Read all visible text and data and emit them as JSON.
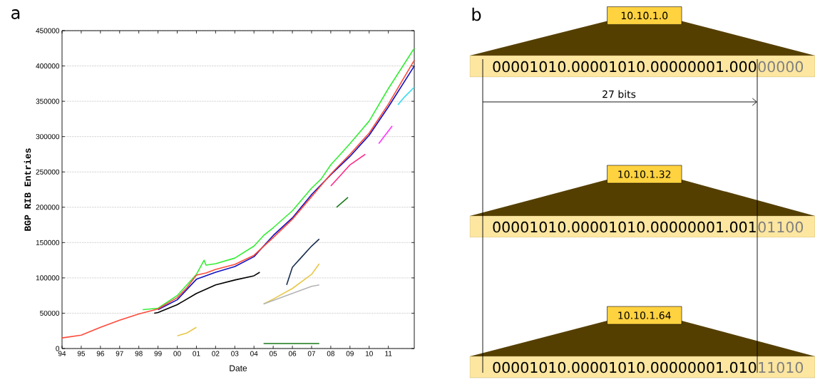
{
  "chart_data": [
    {
      "type": "line",
      "title": "a",
      "xlabel": "Date",
      "ylabel": "BGP RIB Entries",
      "xlim": [
        1994,
        2012.35
      ],
      "ylim": [
        0,
        450000
      ],
      "xticks": [
        {
          "value": 1994,
          "label": "94"
        },
        {
          "value": 1995,
          "label": "95"
        },
        {
          "value": 1996,
          "label": "96"
        },
        {
          "value": 1997,
          "label": "97"
        },
        {
          "value": 1998,
          "label": "98"
        },
        {
          "value": 1999,
          "label": "99"
        },
        {
          "value": 2000,
          "label": "00"
        },
        {
          "value": 2001,
          "label": "01"
        },
        {
          "value": 2002,
          "label": "02"
        },
        {
          "value": 2003,
          "label": "03"
        },
        {
          "value": 2004,
          "label": "04"
        },
        {
          "value": 2005,
          "label": "05"
        },
        {
          "value": 2006,
          "label": "06"
        },
        {
          "value": 2007,
          "label": "07"
        },
        {
          "value": 2008,
          "label": "08"
        },
        {
          "value": 2009,
          "label": "09"
        },
        {
          "value": 2010,
          "label": "10"
        },
        {
          "value": 2011,
          "label": "11"
        }
      ],
      "yticks": [
        0,
        50000,
        100000,
        150000,
        200000,
        250000,
        300000,
        350000,
        400000,
        450000
      ],
      "grid": "y",
      "series": [
        {
          "color": "#33ee33",
          "x": [
            1998.2,
            1999,
            2000,
            2001,
            2001.4,
            2001.5,
            2002,
            2003,
            2004,
            2004.5,
            2005,
            2006,
            2007,
            2007.5,
            2008,
            2008.5,
            2009,
            2010,
            2011,
            2012.35
          ],
          "values": [
            55000,
            57000,
            75000,
            105000,
            125000,
            118000,
            120000,
            128000,
            145000,
            160000,
            171000,
            195000,
            227000,
            240000,
            260000,
            275000,
            290000,
            322000,
            368000,
            425000
          ]
        },
        {
          "color": "#000000",
          "x": [
            1998.8,
            1999,
            2000,
            2001,
            2002,
            2003,
            2004,
            2004.3
          ],
          "values": [
            50000,
            51000,
            62000,
            78000,
            90000,
            97000,
            103000,
            108000
          ]
        },
        {
          "color": "#1a2f50",
          "x": [
            2005.7,
            2006,
            2006.5,
            2007,
            2007.4
          ],
          "values": [
            90000,
            115000,
            130000,
            145000,
            155000
          ]
        },
        {
          "color": "#e8c84a",
          "x": [
            2000,
            2000.5,
            2001,
            2002,
            2004.5,
            2005,
            2006,
            2007,
            2007.4
          ],
          "values": [
            18000,
            22000,
            30000,
            null,
            63000,
            70000,
            85000,
            105000,
            120000
          ]
        },
        {
          "color": "#b4b4b4",
          "x": [
            2004.5,
            2005,
            2006,
            2007,
            2007.4
          ],
          "values": [
            63000,
            68000,
            78000,
            88000,
            90000
          ]
        },
        {
          "color": "#1a7a1a",
          "x": [
            2004.5,
            2005.5,
            2006.5,
            2007.4,
            2007.6,
            2008.3,
            2008.9
          ],
          "values": [
            7000,
            7000,
            7000,
            7000,
            null,
            200000,
            214000
          ]
        },
        {
          "color": "#ff2a8a",
          "x": [
            2008,
            2008.5,
            2009,
            2009.8
          ],
          "values": [
            230000,
            245000,
            260000,
            275000
          ]
        },
        {
          "color": "#ff33ff",
          "x": [
            2010.5,
            2011.2
          ],
          "values": [
            290000,
            315000
          ]
        },
        {
          "color": "#33ddee",
          "x": [
            2011.5,
            2011.8,
            2012.35
          ],
          "values": [
            345000,
            355000,
            370000
          ]
        },
        {
          "color": "#1010c0",
          "x": [
            1999,
            2000,
            2001,
            2002,
            2003,
            2004,
            2005,
            2006,
            2007,
            2008,
            2009,
            2010,
            2011,
            2012.35
          ],
          "values": [
            55000,
            69000,
            98000,
            108000,
            116000,
            130000,
            160000,
            185000,
            218000,
            246000,
            272000,
            302000,
            342000,
            400000
          ]
        },
        {
          "color": "#ff4a3a",
          "x": [
            1994,
            1995,
            1996,
            1997,
            1998,
            1999,
            2000,
            2000.5,
            2001,
            2001.5,
            2002,
            2003,
            2004,
            2005,
            2006,
            2007,
            2008,
            2009,
            2010,
            2011,
            2012.35
          ],
          "values": [
            15000,
            19000,
            30000,
            40000,
            49000,
            56000,
            72000,
            86000,
            104000,
            107000,
            112000,
            119000,
            132000,
            157000,
            183000,
            215000,
            247000,
            275000,
            305000,
            346000,
            408000
          ]
        }
      ]
    },
    {
      "type": "other",
      "title": "b",
      "annotations": [
        "10.10.1.0",
        "00001010.00001010.00000001.000",
        "00000",
        "10.10.1.32",
        "00001010.00001010.00000001.001",
        "01100",
        "10.10.1.64",
        "00001010.00001010.00000001.010",
        "11010",
        "27 bits"
      ]
    }
  ]
}
